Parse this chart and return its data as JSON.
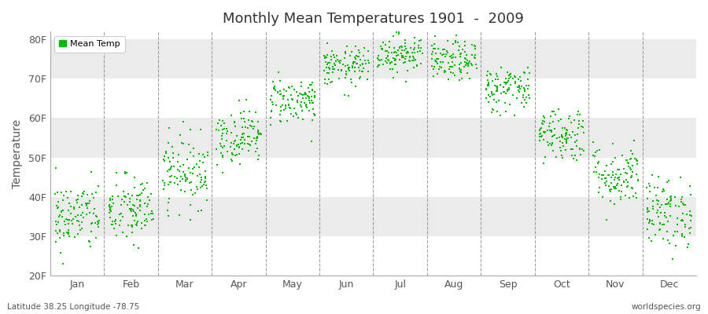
{
  "title": "Monthly Mean Temperatures 1901  -  2009",
  "ylabel": "Temperature",
  "subtitle": "Latitude 38.25 Longitude -78.75",
  "watermark": "worldspecies.org",
  "months": [
    "Jan",
    "Feb",
    "Mar",
    "Apr",
    "May",
    "Jun",
    "Jul",
    "Aug",
    "Sep",
    "Oct",
    "Nov",
    "Dec"
  ],
  "ylim": [
    20,
    82
  ],
  "yticks": [
    20,
    30,
    40,
    50,
    60,
    70,
    80
  ],
  "dot_color": "#00bb00",
  "legend_label": "Mean Temp",
  "background_color": "#ffffff",
  "n_years": 109,
  "mean_temps": [
    35.0,
    36.5,
    46.5,
    55.5,
    64.5,
    73.0,
    76.5,
    74.5,
    67.5,
    56.0,
    45.5,
    36.0
  ],
  "std_temps": [
    4.5,
    4.5,
    4.5,
    3.5,
    3.0,
    2.5,
    2.5,
    2.5,
    3.0,
    3.5,
    4.0,
    4.5
  ],
  "band_colors": [
    "#ffffff",
    "#ebebeb"
  ],
  "title_fontsize": 13,
  "tick_fontsize": 9
}
